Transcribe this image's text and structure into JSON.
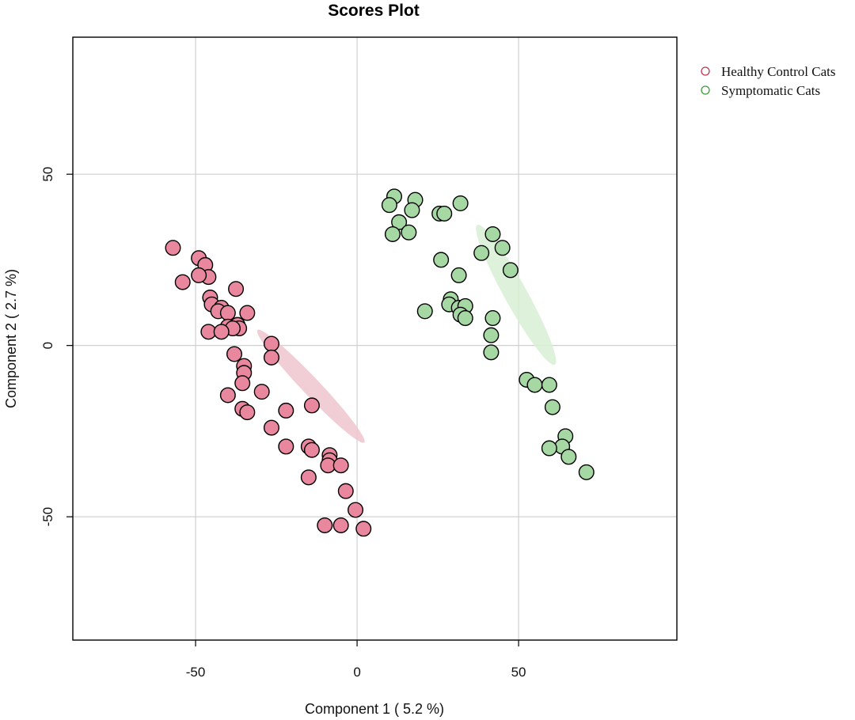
{
  "chart_data": {
    "type": "scatter",
    "title": "Scores Plot",
    "xlabel": "Component 1 ( 5.2 %)",
    "ylabel": "Component 2 ( 2.7 %)",
    "xlim": [
      -88,
      99
    ],
    "ylim": [
      -86,
      90
    ],
    "xticks": [
      -50,
      0,
      50
    ],
    "yticks": [
      -50,
      0,
      50
    ],
    "tick_labels_x": [
      "-50",
      "0",
      "50"
    ],
    "tick_labels_y": [
      "-50",
      "0",
      "50"
    ],
    "grid": true,
    "legend_position": "right-top-outside",
    "series": [
      {
        "name": "Healthy Control Cats",
        "color": "#e8879e",
        "edge_color": "#000000",
        "legend_color": "#c0344e",
        "ellipse_color": "#efc6cf",
        "ellipse": {
          "cx": -14.3,
          "cy": -11.9,
          "rx": 98,
          "ry": 11.2,
          "angle_deg": -46.5
        },
        "points": [
          [
            -57,
            28.5
          ],
          [
            -54,
            18.5
          ],
          [
            -49,
            25.5
          ],
          [
            -47,
            23.5
          ],
          [
            -46,
            20
          ],
          [
            -49,
            20.5
          ],
          [
            -37.5,
            16.5
          ],
          [
            -45.5,
            14
          ],
          [
            -45,
            12
          ],
          [
            -42,
            11
          ],
          [
            -43,
            10
          ],
          [
            -40,
            9.5
          ],
          [
            -34,
            9.5
          ],
          [
            -37,
            6
          ],
          [
            -40,
            5.5
          ],
          [
            -36.5,
            5
          ],
          [
            -38.5,
            5
          ],
          [
            -46,
            4
          ],
          [
            -42,
            4
          ],
          [
            -26.5,
            0.5
          ],
          [
            -38,
            -2.5
          ],
          [
            -26.5,
            -3.5
          ],
          [
            -35,
            -6
          ],
          [
            -35,
            -8
          ],
          [
            -35.5,
            -11
          ],
          [
            -40,
            -14.5
          ],
          [
            -29.5,
            -13.5
          ],
          [
            -35.5,
            -18.5
          ],
          [
            -22,
            -19
          ],
          [
            -34,
            -19.5
          ],
          [
            -14,
            -17.5
          ],
          [
            -26.5,
            -24
          ],
          [
            -22,
            -29.5
          ],
          [
            -15,
            -29.5
          ],
          [
            -14,
            -30.5
          ],
          [
            -8.5,
            -32
          ],
          [
            -8.5,
            -33.5
          ],
          [
            -9,
            -35
          ],
          [
            -5,
            -35
          ],
          [
            -15,
            -38.5
          ],
          [
            -3.5,
            -42.5
          ],
          [
            -0.5,
            -48
          ],
          [
            -10,
            -52.5
          ],
          [
            -5,
            -52.5
          ],
          [
            2,
            -53.5
          ]
        ]
      },
      {
        "name": "Symptomatic Cats",
        "color": "#a6d8a3",
        "edge_color": "#000000",
        "legend_color": "#3d9b3a",
        "ellipse_color": "#d8eed3",
        "ellipse": {
          "cx": 49.2,
          "cy": 14.8,
          "rx": 101,
          "ry": 14.4,
          "angle_deg": -61
        },
        "points": [
          [
            11.5,
            43.5
          ],
          [
            18,
            42.5
          ],
          [
            10,
            41
          ],
          [
            32,
            41.5
          ],
          [
            17,
            39.5
          ],
          [
            25.5,
            38.5
          ],
          [
            27,
            38.5
          ],
          [
            13,
            36
          ],
          [
            16,
            33
          ],
          [
            11,
            32.5
          ],
          [
            42,
            32.5
          ],
          [
            45,
            28.5
          ],
          [
            38.5,
            27
          ],
          [
            26,
            25
          ],
          [
            47.5,
            22
          ],
          [
            31.5,
            20.5
          ],
          [
            29,
            13.5
          ],
          [
            28.5,
            12
          ],
          [
            31.5,
            11
          ],
          [
            33.5,
            11.5
          ],
          [
            21,
            10
          ],
          [
            32,
            9
          ],
          [
            33.5,
            8
          ],
          [
            42,
            8
          ],
          [
            41.5,
            3
          ],
          [
            41.5,
            -2
          ],
          [
            52.5,
            -10
          ],
          [
            55,
            -11.5
          ],
          [
            59.5,
            -11.5
          ],
          [
            60.5,
            -18
          ],
          [
            64.5,
            -26.5
          ],
          [
            63.5,
            -29.5
          ],
          [
            59.5,
            -30
          ],
          [
            65.5,
            -32.5
          ],
          [
            71,
            -37
          ]
        ]
      }
    ]
  }
}
